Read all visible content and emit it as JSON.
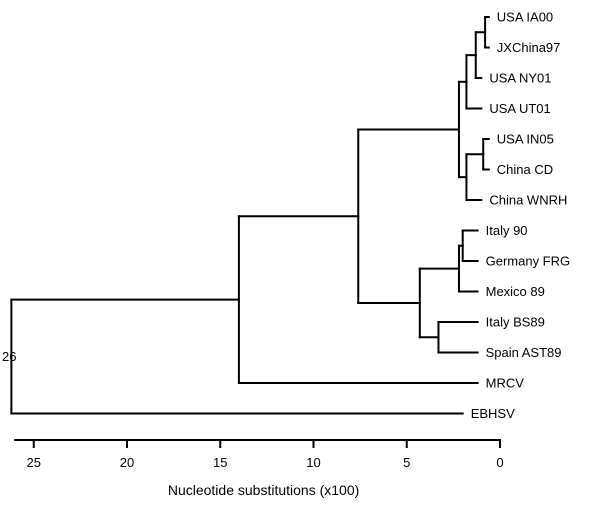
{
  "tree": {
    "leaves": [
      {
        "id": "usa_ia00",
        "label": "USA IA00",
        "tip": 0.6
      },
      {
        "id": "jxchina97",
        "label": "JXChina97",
        "tip": 0.6
      },
      {
        "id": "usa_ny01",
        "label": "USA NY01",
        "tip": 1.0
      },
      {
        "id": "usa_ut01",
        "label": "USA UT01",
        "tip": 1.0
      },
      {
        "id": "usa_in05",
        "label": "USA IN05",
        "tip": 0.6
      },
      {
        "id": "china_cd",
        "label": "China CD",
        "tip": 0.6
      },
      {
        "id": "china_wnrh",
        "label": "China WNRH",
        "tip": 1.0
      },
      {
        "id": "italy_90",
        "label": "Italy 90",
        "tip": 1.2
      },
      {
        "id": "germany_frg",
        "label": "Germany FRG",
        "tip": 1.2
      },
      {
        "id": "mexico_89",
        "label": "Mexico 89",
        "tip": 1.2
      },
      {
        "id": "italy_bs89",
        "label": "Italy BS89",
        "tip": 1.2
      },
      {
        "id": "spain_ast89",
        "label": "Spain AST89",
        "tip": 1.2
      },
      {
        "id": "mrcv",
        "label": "MRCV",
        "tip": 1.2
      },
      {
        "id": "ebhsv",
        "label": "EBHSV",
        "tip": 2.0
      }
    ],
    "nodes": [
      {
        "id": "n_ia_jx",
        "height": 0.8,
        "children": [
          "usa_ia00",
          "jxchina97"
        ]
      },
      {
        "id": "n_ia_ny",
        "height": 1.3,
        "children": [
          "n_ia_jx",
          "usa_ny01"
        ]
      },
      {
        "id": "n_ut",
        "height": 1.8,
        "children": [
          "n_ia_ny",
          "usa_ut01"
        ]
      },
      {
        "id": "n_in_cd",
        "height": 0.9,
        "children": [
          "usa_in05",
          "china_cd"
        ]
      },
      {
        "id": "n_wnrh",
        "height": 1.8,
        "children": [
          "n_in_cd",
          "china_wnrh"
        ]
      },
      {
        "id": "n_asian",
        "height": 2.2,
        "children": [
          "n_ut",
          "n_wnrh"
        ]
      },
      {
        "id": "n_it_de",
        "height": 2.0,
        "children": [
          "italy_90",
          "germany_frg"
        ]
      },
      {
        "id": "n_mex",
        "height": 2.2,
        "children": [
          "n_it_de",
          "mexico_89"
        ]
      },
      {
        "id": "n_it_es",
        "height": 3.3,
        "children": [
          "italy_bs89",
          "spain_ast89"
        ]
      },
      {
        "id": "n_euro",
        "height": 4.3,
        "children": [
          "n_mex",
          "n_it_es"
        ]
      },
      {
        "id": "n_rhdv",
        "height": 7.6,
        "children": [
          "n_asian",
          "n_euro"
        ]
      },
      {
        "id": "n_lago",
        "height": 14.0,
        "children": [
          "n_rhdv",
          "mrcv"
        ]
      },
      {
        "id": "root",
        "height": 26.2,
        "label": "26",
        "children": [
          "n_lago",
          "ebhsv"
        ]
      }
    ]
  },
  "axis": {
    "label": "Nucleotide substitutions (x100)",
    "min": 0,
    "max": 26,
    "ticks": [
      25,
      20,
      15,
      10,
      5,
      0
    ]
  }
}
